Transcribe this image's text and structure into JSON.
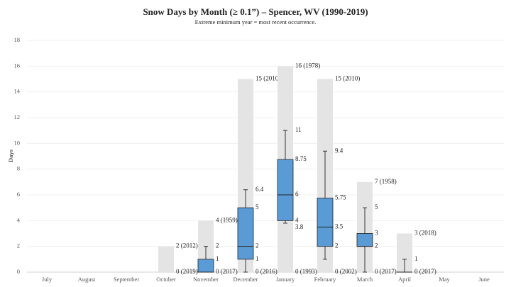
{
  "chart_data": {
    "type": "box",
    "title": "Snow Days by Month (≥ 0.1”) – Spencer, WV (1990-2019)",
    "subtitle": "Extreme minimum year = most recent occurrence.",
    "y_label": "Days",
    "categories": [
      "July",
      "August",
      "September",
      "October",
      "November",
      "December",
      "January",
      "February",
      "March",
      "April",
      "May",
      "June"
    ],
    "ylim": [
      0,
      18
    ],
    "yticks": [
      0,
      2,
      4,
      6,
      8,
      10,
      12,
      14,
      16,
      18
    ],
    "grid": true,
    "extreme_max": {
      "color": "#e4e4e4",
      "values": [
        null,
        null,
        null,
        2,
        4,
        15,
        16,
        15,
        7,
        3,
        null,
        null
      ],
      "value_labels": [
        null,
        null,
        null,
        "2 (2012)",
        "4 (1959)",
        "15 (2010)",
        "16 (1978)",
        "15 (2010)",
        "7 (1958)",
        "3 (2018)",
        null,
        null
      ]
    },
    "extreme_min": {
      "values": [
        null,
        null,
        null,
        0,
        0,
        0,
        0,
        0,
        0,
        0,
        null,
        null
      ],
      "value_labels": [
        null,
        null,
        null,
        "0 (2019)",
        "0 (2017)",
        "0 (2016)",
        "0 (1993)",
        "0 (2002)",
        "0 (2017)",
        "0 (2017)",
        null,
        null
      ]
    },
    "box_color": "#5b9bd5",
    "whisker_high": {
      "values": [
        null,
        null,
        null,
        null,
        2,
        6.4,
        11,
        9.4,
        5,
        1,
        null,
        null
      ],
      "value_labels": [
        null,
        null,
        null,
        null,
        "2",
        "6.4",
        "11",
        "9.4",
        "5",
        "1",
        null,
        null
      ]
    },
    "q3": {
      "values": [
        null,
        null,
        null,
        null,
        1,
        5,
        8.75,
        5.75,
        3,
        0,
        null,
        null
      ],
      "value_labels": [
        null,
        null,
        null,
        null,
        "1",
        "5",
        "8.75",
        "5.75",
        "3",
        null,
        null,
        null
      ]
    },
    "median": {
      "values": [
        null,
        null,
        null,
        null,
        0,
        2,
        6,
        3.5,
        2,
        0,
        null,
        null
      ],
      "value_labels": [
        null,
        null,
        null,
        null,
        null,
        "2",
        "6",
        "3.5",
        "2",
        null,
        null,
        null
      ]
    },
    "q1": {
      "values": [
        null,
        null,
        null,
        null,
        0,
        1,
        4,
        2,
        2,
        0,
        null,
        null
      ],
      "value_labels": [
        null,
        null,
        null,
        null,
        null,
        "1",
        "4",
        "2",
        null,
        null,
        null,
        null
      ]
    },
    "whisker_low": {
      "values": [
        null,
        null,
        null,
        null,
        0,
        0,
        3.8,
        1,
        0,
        0,
        null,
        null
      ],
      "value_labels": [
        null,
        null,
        null,
        null,
        null,
        null,
        "3.8",
        null,
        null,
        null,
        null,
        null
      ]
    }
  }
}
